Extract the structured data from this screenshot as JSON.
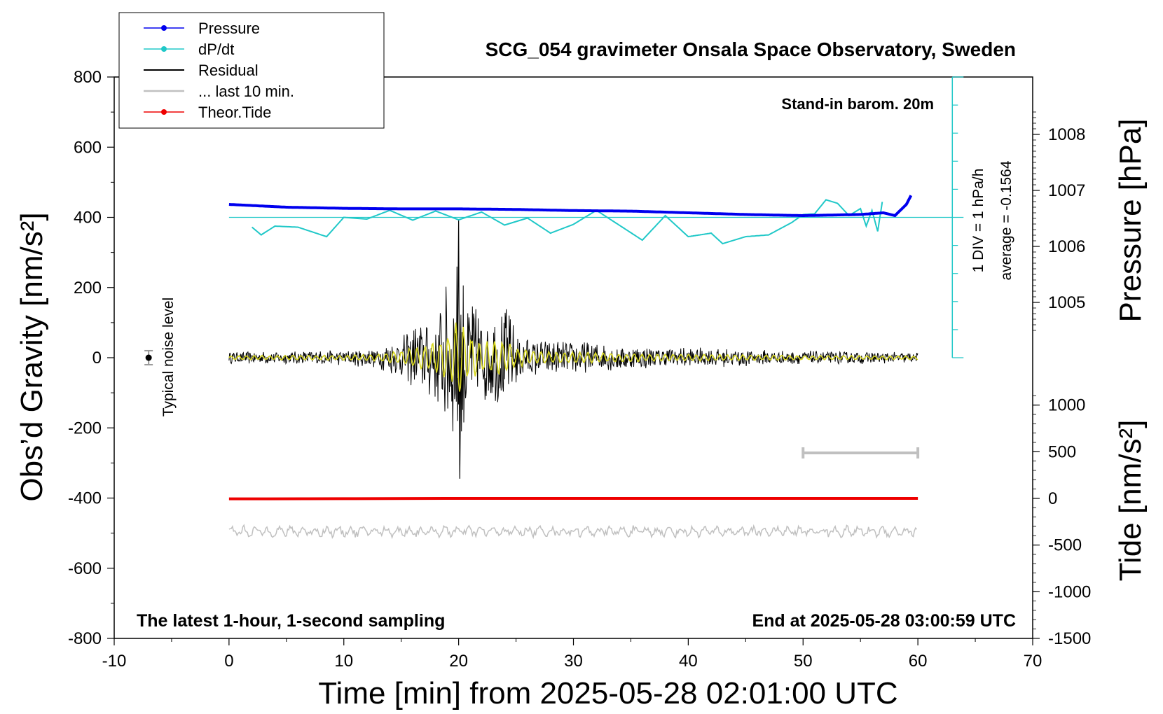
{
  "chart_data": {
    "type": "line",
    "title": "SCG_054 gravimeter Onsala Space Observatory, Sweden",
    "subtitle": "Stand-in barom. 20m",
    "xlabel": "Time [min] from 2025-05-28 02:01:00 UTC",
    "ylabel_left": "Obs’d Gravity [nm/s²]",
    "ylabel_right_upper": "Pressure [hPa]",
    "ylabel_right_lower": "Tide [nm/s²]",
    "xlim": [
      -10,
      70
    ],
    "ylim_left": [
      -800,
      800
    ],
    "x_ticks": [
      "-10",
      "0",
      "10",
      "20",
      "30",
      "40",
      "50",
      "60",
      "70"
    ],
    "y_left_ticks": [
      "800",
      "600",
      "400",
      "200",
      "0",
      "-200",
      "-400",
      "-600",
      "-800"
    ],
    "pressure_ticks": [
      "1008",
      "1007",
      "1006",
      "1005"
    ],
    "tide_ticks": [
      "1000",
      "500",
      "0",
      "-500",
      "-1000",
      "-1500"
    ],
    "annotations": {
      "bottom_left": "The latest 1-hour, 1-second sampling",
      "bottom_right": "End at 2025-05-28 03:00:59 UTC",
      "noise": "Typical noise level",
      "dpdt_scale": "1 DIV = 1 hPa/h",
      "dpdt_average": "average = -0.1564"
    },
    "legend": {
      "placement": "top-left",
      "entries": [
        "Pressure",
        "dP/dt",
        "Residual",
        "... last 10 min.",
        "Theor.Tide"
      ]
    },
    "colors": {
      "pressure": "#0000ee",
      "dpdt": "#20c8c8",
      "residual": "#000000",
      "last10": "#c0c0c0",
      "tide": "#ee0000",
      "filtered": "#d8d820"
    },
    "series": [
      {
        "name": "Pressure",
        "axis": "pressure_hPa",
        "x": [
          0,
          5,
          10,
          15,
          20,
          25,
          30,
          35,
          40,
          45,
          50,
          55,
          57,
          58,
          59,
          59.5
        ],
        "y": [
          1006.75,
          1006.7,
          1006.68,
          1006.67,
          1006.67,
          1006.66,
          1006.64,
          1006.63,
          1006.6,
          1006.57,
          1006.55,
          1006.57,
          1006.6,
          1006.55,
          1006.75,
          1006.95
        ]
      },
      {
        "name": "dP/dt",
        "axis": "left_nm_s2",
        "x": [
          2,
          2.8,
          4,
          6,
          8.5,
          10,
          12,
          14,
          16,
          18,
          20,
          22,
          24,
          26,
          28,
          30,
          32,
          36,
          38,
          40,
          42,
          43,
          45,
          47,
          49,
          50,
          51,
          52,
          53,
          54,
          55,
          55.5,
          56,
          56.5,
          57
        ],
        "y": [
          372,
          350,
          375,
          372,
          345,
          400,
          395,
          420,
          392,
          418,
          393,
          415,
          378,
          398,
          355,
          380,
          420,
          335,
          405,
          345,
          355,
          325,
          345,
          350,
          385,
          408,
          410,
          450,
          440,
          405,
          425,
          375,
          420,
          360,
          465
        ]
      },
      {
        "name": "Residual",
        "axis": "left_nm_s2",
        "x": [
          0,
          5,
          10,
          13,
          14,
          15,
          16,
          17,
          18,
          19,
          19.5,
          20,
          20.5,
          21,
          22,
          23,
          24,
          25,
          27,
          30,
          35,
          40,
          45,
          50,
          55,
          60
        ],
        "y": [
          0,
          0,
          0,
          0,
          0,
          0,
          0,
          0,
          0,
          0,
          0,
          0,
          0,
          0,
          0,
          0,
          0,
          0,
          0,
          0,
          0,
          0,
          0,
          0,
          0,
          0
        ],
        "envelope": [
          18,
          20,
          22,
          30,
          50,
          60,
          95,
          110,
          130,
          220,
          240,
          380,
          250,
          200,
          150,
          140,
          165,
          80,
          55,
          50,
          35,
          30,
          25,
          20,
          18,
          15
        ]
      },
      {
        "name": "... last 10 min.",
        "axis": "left_nm_s2",
        "x": [
          0,
          10,
          20,
          30,
          40,
          50,
          60
        ],
        "y": [
          -495,
          -495,
          -495,
          -495,
          -495,
          -495,
          -495
        ]
      },
      {
        "name": "Theor.Tide",
        "axis": "tide_nm_s2",
        "x": [
          0,
          10,
          20,
          30,
          40,
          50,
          60
        ],
        "y": [
          -5,
          -3,
          0,
          0,
          0,
          0,
          0
        ]
      }
    ],
    "last_10_min_range": [
      50,
      60
    ],
    "noise_level": {
      "x": -7,
      "center": 0,
      "bar": 20
    }
  }
}
